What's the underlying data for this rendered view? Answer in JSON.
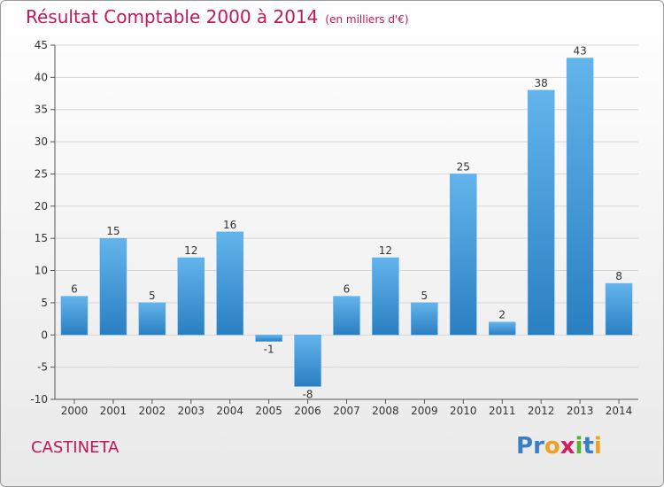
{
  "header": {
    "title": "Résultat Comptable 2000 à 2014",
    "subtitle": "(en milliers d'€)"
  },
  "footer": {
    "commune": "CASTINETA",
    "logo_text": "Proxiti",
    "logo_letters": [
      {
        "ch": "P",
        "color": "#3a7fc4"
      },
      {
        "ch": "r",
        "color": "#3a7fc4"
      },
      {
        "ch": "o",
        "color": "#f0a020"
      },
      {
        "ch": "x",
        "color": "#d02060"
      },
      {
        "ch": "i",
        "color": "#58b030"
      },
      {
        "ch": "t",
        "color": "#3a7fc4"
      },
      {
        "ch": "i",
        "color": "#f0a020"
      }
    ]
  },
  "colors": {
    "bar_light": "#63b4ec",
    "bar_dark": "#2a7fc1",
    "title": "#c0185a",
    "grid": "#d6d6d6"
  },
  "chart_data": {
    "type": "bar",
    "categories": [
      "2000",
      "2001",
      "2002",
      "2003",
      "2004",
      "2005",
      "2006",
      "2007",
      "2008",
      "2009",
      "2010",
      "2011",
      "2012",
      "2013",
      "2014"
    ],
    "values": [
      6,
      15,
      5,
      12,
      16,
      -1,
      -8,
      6,
      12,
      5,
      25,
      2,
      38,
      43,
      8
    ],
    "ylim": [
      -10,
      45
    ],
    "yticks": [
      -10,
      -5,
      0,
      5,
      10,
      15,
      20,
      25,
      30,
      35,
      40,
      45
    ],
    "grid": true,
    "legend": "none"
  }
}
